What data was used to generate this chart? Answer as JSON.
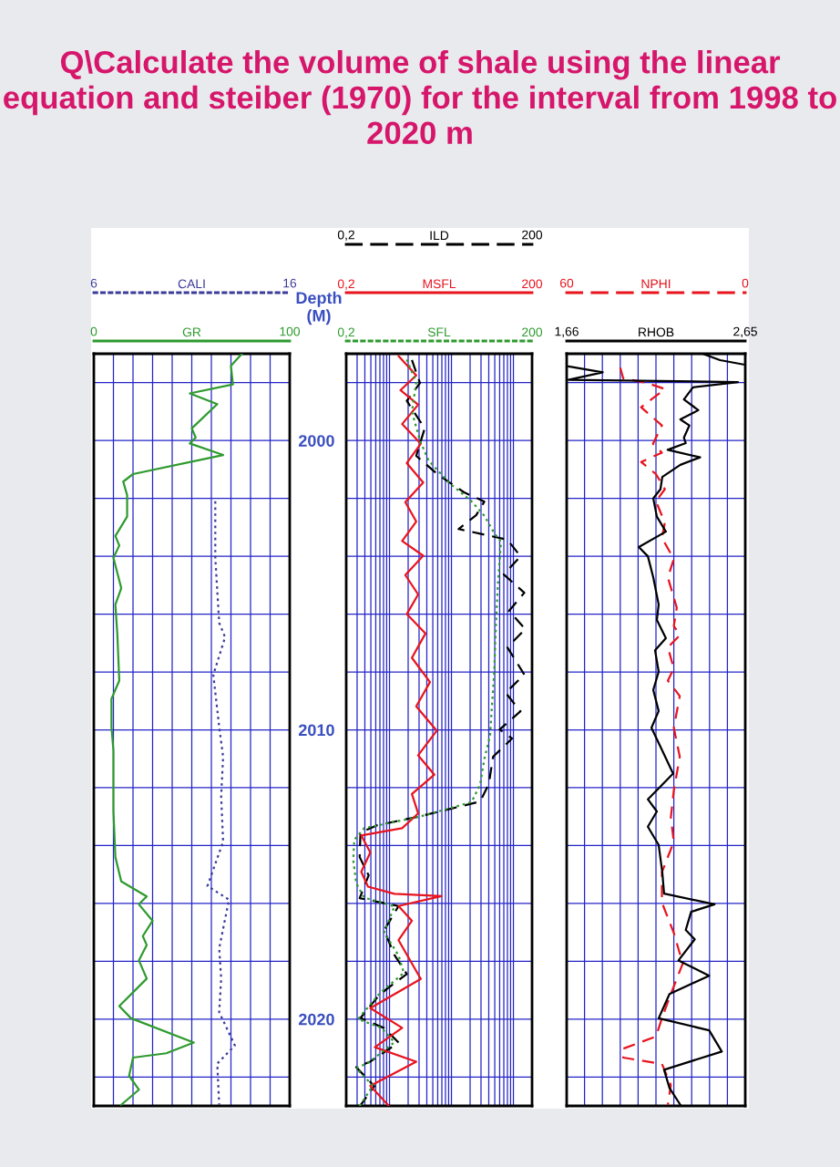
{
  "chart_data": [
    {
      "type": "line",
      "orientation": "horizontal",
      "title": "Q\\Calculate the volume of shale using the linear equation and steiber (1970) for the interval from 1998 to 2020 m",
      "grid": true,
      "tick_labels": "x",
      "ylim": [
        2023,
        1997
      ],
      "yticks": [
        {
          "value": 1998,
          "label": null
        },
        2000,
        {
          "value": 2002,
          "label": null
        },
        {
          "value": 2004,
          "label": null
        },
        {
          "value": 2006,
          "label": null
        },
        {
          "value": 2008,
          "label": null
        },
        2010,
        {
          "value": 2012,
          "label": null
        },
        {
          "value": 2014,
          "label": null
        },
        {
          "value": 2016,
          "label": null
        },
        {
          "value": 2018,
          "label": null
        },
        2020,
        {
          "value": 2022,
          "label": null
        }
      ],
      "xlim": [
        0,
        100
      ],
      "xticks": [
        0,
        {
          "value": 10,
          "label": null
        },
        {
          "value": 20,
          "label": null
        },
        {
          "value": 30,
          "label": null
        },
        {
          "value": 40,
          "label": null
        },
        {
          "value": 50,
          "label": null
        },
        {
          "value": 60,
          "label": null
        },
        {
          "value": 70,
          "label": null
        },
        {
          "value": 80,
          "label": null
        },
        {
          "value": 90,
          "label": null
        },
        100
      ],
      "x2lim": [
        6,
        16
      ],
      "x2ticks": [
        6,
        16
      ],
      "series": [
        {
          "name": "CALI",
          "color": "#3b3b9a",
          "line_style": "dotted",
          "axis": "x2",
          "x": [
            2002.1,
            2004.05,
            2006.3,
            2006.8,
            2008.1,
            2009.9,
            2010.93,
            2012.3,
            2013.87,
            2015.4,
            2015.87,
            2017.55,
            2018.6,
            2019.76,
            2020.91,
            2021.54,
            2022.96
          ],
          "values": [
            12.2,
            12.2,
            12.4,
            12.7,
            12.1,
            12.4,
            12.6,
            12.5,
            12.6,
            11.8,
            12.9,
            12.4,
            12.5,
            12.4,
            13.2,
            12.3,
            12.4
          ]
        },
        {
          "name": "GR",
          "color": "#2e9a2e",
          "line_style": "solid",
          "x": [
            1996.97,
            1997.42,
            1998.06,
            1998.37,
            1998.74,
            1999.58,
            1999.9,
            2000.1,
            2000.5,
            2001.16,
            2001.42,
            2001.89,
            2002.63,
            2003.3,
            2003.63,
            2004.05,
            2005.1,
            2005.67,
            2006.7,
            2008.3,
            2008.93,
            2009.9,
            2010.72,
            2012.82,
            2014.4,
            2015.24,
            2015.76,
            2016.03,
            2016.6,
            2017.13,
            2017.44,
            2017.97,
            2018.6,
            2019.55,
            2019.97,
            2020.81,
            2021.18,
            2021.33,
            2021.96,
            2022.44,
            2022.96
          ],
          "values": [
            76,
            70,
            71,
            49,
            63,
            50,
            52,
            49,
            66,
            20,
            15,
            17,
            17,
            11,
            13,
            10,
            14,
            11,
            12,
            13,
            9,
            9,
            10,
            10,
            11,
            14,
            27,
            23,
            30,
            25,
            27,
            23,
            27,
            13,
            19,
            51,
            37,
            20,
            18,
            23,
            14
          ]
        }
      ]
    },
    {
      "type": "line",
      "orientation": "horizontal",
      "ylabel": "Depth\n(M)",
      "grid": true,
      "log": "x",
      "ylim": [
        2023,
        1997
      ],
      "yticks": [
        {
          "value": 1998,
          "label": null
        },
        2000,
        {
          "value": 2002,
          "label": null
        },
        {
          "value": 2004,
          "label": null
        },
        {
          "value": 2006,
          "label": null
        },
        {
          "value": 2008,
          "label": null
        },
        2010,
        {
          "value": 2012,
          "label": null
        },
        {
          "value": 2014,
          "label": null
        },
        {
          "value": 2016,
          "label": null
        },
        {
          "value": 2018,
          "label": null
        },
        2020,
        {
          "value": 2022,
          "label": null
        }
      ],
      "annotations": [
        "0,2",
        "200",
        "0,2",
        "200"
      ],
      "xlim": [
        0.2,
        200
      ],
      "xticks": [
        {
          "value": 0.2,
          "label": "0,2"
        },
        {
          "value": 0.3,
          "label": null
        },
        {
          "value": 0.4,
          "label": null
        },
        {
          "value": 0.5,
          "label": null
        },
        {
          "value": 0.6,
          "label": null
        },
        {
          "value": 0.7,
          "label": null
        },
        {
          "value": 0.8,
          "label": null
        },
        {
          "value": 0.9,
          "label": null
        },
        {
          "value": 1,
          "label": null
        },
        {
          "value": 2,
          "label": null
        },
        {
          "value": 3,
          "label": null
        },
        {
          "value": 4,
          "label": null
        },
        {
          "value": 5,
          "label": null
        },
        {
          "value": 6,
          "label": null
        },
        {
          "value": 7,
          "label": null
        },
        {
          "value": 8,
          "label": null
        },
        {
          "value": 9,
          "label": null
        },
        {
          "value": 10,
          "label": null
        },
        {
          "value": 20,
          "label": null
        },
        {
          "value": 30,
          "label": null
        },
        {
          "value": 40,
          "label": null
        },
        {
          "value": 50,
          "label": null
        },
        {
          "value": 60,
          "label": null
        },
        {
          "value": 70,
          "label": null
        },
        {
          "value": 80,
          "label": null
        },
        {
          "value": 90,
          "label": null
        },
        {
          "value": 100,
          "label": null
        },
        200
      ],
      "series": [
        {
          "name": "ILD",
          "color": "#000000",
          "line_style": "dashed",
          "x": [
            1997.22,
            1998.01,
            1998.63,
            1999.58,
            2000.53,
            2001.16,
            2001.79,
            2002.11,
            2002.58,
            2003.06,
            2003.22,
            2003.43,
            2004.0,
            2004.63,
            2005.26,
            2005.89,
            2006.52,
            2007.15,
            2008.09,
            2008.72,
            2009.36,
            2009.99,
            2010.3,
            2010.93,
            2011.88,
            2012.48,
            2012.99,
            2013.3,
            2013.55,
            2014.4,
            2015.03,
            2015.82,
            2016.09,
            2016.93,
            2017.78,
            2018.44,
            2019.14,
            2019.96,
            2020.31,
            2020.81,
            2021.47,
            2021.66,
            2022.32,
            2022.98
          ],
          "values": [
            2.3,
            3.1,
            1.9,
            3.7,
            2.7,
            5.9,
            16,
            34,
            25,
            13,
            29,
            80,
            130,
            70,
            150,
            85,
            155,
            80,
            150,
            75,
            130,
            60,
            95,
            47,
            40,
            29,
            3.1,
            0.63,
            0.34,
            0.33,
            0.46,
            0.33,
            1.4,
            0.82,
            1.2,
            1.9,
            0.7,
            0.34,
            0.82,
            1.4,
            0.49,
            0.29,
            0.57,
            0.34
          ]
        },
        {
          "name": "MSFL",
          "color": "#e8141e",
          "line_style": "solid",
          "x": [
            1997.08,
            1997.75,
            1998.26,
            1998.76,
            1999.43,
            2000.11,
            2000.78,
            2001.45,
            2002.13,
            2002.8,
            2003.47,
            2003.98,
            2004.65,
            2005.32,
            2006.0,
            2006.67,
            2007.51,
            2008.35,
            2009.19,
            2010.03,
            2010.88,
            2011.55,
            2012.22,
            2012.89,
            2013.4,
            2013.65,
            2014.24,
            2014.91,
            2015.42,
            2015.67,
            2015.75,
            2016.09,
            2016.6,
            2017.27,
            2018.61,
            2019.62,
            2020.3,
            2020.97,
            2021.47,
            2022.31,
            2022.99
          ],
          "values": [
            1.4,
            2.7,
            1.5,
            2.9,
            1.6,
            3.2,
            1.9,
            3.5,
            1.8,
            2.7,
            1.6,
            3.5,
            1.8,
            2.9,
            1.9,
            3.8,
            2.3,
            4.5,
            2.7,
            5.8,
            2.9,
            5.3,
            2.3,
            2.9,
            1.6,
            0.35,
            0.49,
            0.35,
            0.45,
            1.2,
            6.9,
            1.4,
            2.3,
            1.4,
            3.2,
            0.49,
            1.6,
            0.58,
            2.7,
            0.49,
            0.97
          ]
        },
        {
          "name": "SFL",
          "color": "#2e9a2e",
          "line_style": "dotted",
          "x": [
            1997.2,
            1998.0,
            1999.0,
            2000.0,
            2000.7,
            2001.5,
            2002.1,
            2002.6,
            2003.2,
            2003.5,
            2005.0,
            2006.5,
            2008.0,
            2009.5,
            2010.2,
            2011.0,
            2011.9,
            2012.5,
            2013.0,
            2013.4,
            2013.8,
            2014.5,
            2015.3,
            2015.8,
            2016.1,
            2017.0,
            2017.8,
            2018.4,
            2019.1,
            2020.0,
            2020.3,
            2020.8,
            2021.5,
            2021.7,
            2022.3,
            2023.0
          ],
          "values": [
            1.9,
            2.7,
            2.3,
            3.1,
            4.3,
            9.6,
            21,
            34,
            49,
            63,
            56,
            52,
            49,
            44,
            42,
            34,
            29,
            21,
            3.1,
            0.39,
            0.27,
            0.26,
            0.29,
            0.39,
            1.2,
            0.82,
            1.4,
            1.7,
            0.7,
            0.31,
            0.74,
            1.2,
            0.46,
            0.29,
            0.54,
            0.33
          ]
        }
      ]
    },
    {
      "type": "line",
      "orientation": "horizontal",
      "grid": true,
      "tick_labels": "x",
      "ylim": [
        2023,
        1997
      ],
      "yticks": [
        {
          "value": 1998,
          "label": null
        },
        2000,
        {
          "value": 2002,
          "label": null
        },
        {
          "value": 2004,
          "label": null
        },
        {
          "value": 2006,
          "label": null
        },
        {
          "value": 2008,
          "label": null
        },
        2010,
        {
          "value": 2012,
          "label": null
        },
        {
          "value": 2014,
          "label": null
        },
        {
          "value": 2016,
          "label": null
        },
        {
          "value": 2018,
          "label": null
        },
        2020,
        {
          "value": 2022,
          "label": null
        }
      ],
      "xlim": [
        60,
        0
      ],
      "xticks": [
        60,
        {
          "value": 54,
          "label": null
        },
        {
          "value": 48,
          "label": null
        },
        {
          "value": 42,
          "label": null
        },
        {
          "value": 36,
          "label": null
        },
        {
          "value": 30,
          "label": null
        },
        {
          "value": 24,
          "label": null
        },
        {
          "value": 18,
          "label": null
        },
        {
          "value": 12,
          "label": null
        },
        {
          "value": 6,
          "label": null
        },
        0
      ],
      "x2lim": [
        1.66,
        2.65
      ],
      "x2ticks": [
        {
          "value": 1.66,
          "label": "1,66"
        },
        {
          "value": 2.65,
          "label": "2,65"
        }
      ],
      "series": [
        {
          "name": "NPHI",
          "color": "#e8141e",
          "line_style": "dashed",
          "x": [
            1997.48,
            1997.85,
            1998.01,
            1998.22,
            1998.85,
            1999.48,
            1999.9,
            2000.11,
            2000.42,
            2000.74,
            2001.16,
            2001.68,
            2002.1,
            2002.84,
            2003.36,
            2004.1,
            2004.73,
            2005.78,
            2006.41,
            2006.73,
            2007.15,
            2007.88,
            2008.3,
            2008.83,
            2009.93,
            2010.93,
            2012.09,
            2013.03,
            2013.87,
            2014.92,
            2015.97,
            2017.02,
            2018.08,
            2019.13,
            2019.97,
            2020.6,
            2021.02,
            2021.33,
            2021.55,
            2022.28,
            2022.96
          ],
          "values": [
            42,
            41,
            33,
            27,
            35,
            28,
            30,
            31,
            28,
            35,
            30,
            27,
            30,
            27,
            28,
            24,
            26,
            23,
            24,
            22,
            26,
            24,
            26,
            22,
            24,
            22,
            24,
            25,
            24,
            28,
            28,
            24,
            21,
            25,
            28,
            30,
            41,
            41,
            28,
            25,
            26
          ]
        },
        {
          "name": "RHOB",
          "color": "#000000",
          "line_style": "solid",
          "axis": "x2",
          "x": [
            1996.97,
            1997.22,
            1997.37,
            1997.4,
            1997.44,
            1997.64,
            1997.9,
            1997.98,
            1998.16,
            1998.58,
            1998.95,
            1999.27,
            1999.48,
            1999.9,
            2000.09,
            2000.32,
            2000.58,
            2000.84,
            2001.26,
            2001.68,
            2002.0,
            2002.63,
            2003.15,
            2003.68,
            2004.0,
            2004.73,
            2005.67,
            2006.2,
            2006.83,
            2007.25,
            2007.99,
            2008.62,
            2009.35,
            2009.93,
            2010.72,
            2011.51,
            2012.4,
            2012.82,
            2013.35,
            2013.98,
            2014.92,
            2015.66,
            2016.03,
            2016.29,
            2016.92,
            2017.24,
            2017.97,
            2018.5,
            2019.13,
            2019.97,
            2020.39,
            2021.12,
            2021.75,
            2022.38,
            2022.96
          ],
          "values": [
            2.4,
            2.51,
            2.64,
            null,
            1.67,
            1.86,
            1.67,
            2.61,
            2.36,
            2.31,
            2.39,
            2.29,
            2.34,
            2.31,
            2.32,
            2.22,
            2.4,
            2.29,
            2.19,
            2.18,
            2.14,
            2.16,
            2.21,
            2.06,
            2.11,
            2.14,
            2.17,
            2.16,
            2.21,
            2.15,
            2.17,
            2.14,
            2.17,
            2.13,
            2.19,
            2.25,
            2.11,
            2.16,
            2.11,
            2.17,
            2.19,
            2.2,
            2.48,
            2.35,
            2.32,
            2.37,
            2.28,
            2.45,
            2.23,
            2.17,
            2.45,
            2.52,
            2.2,
            2.23,
            2.29
          ]
        }
      ]
    }
  ]
}
